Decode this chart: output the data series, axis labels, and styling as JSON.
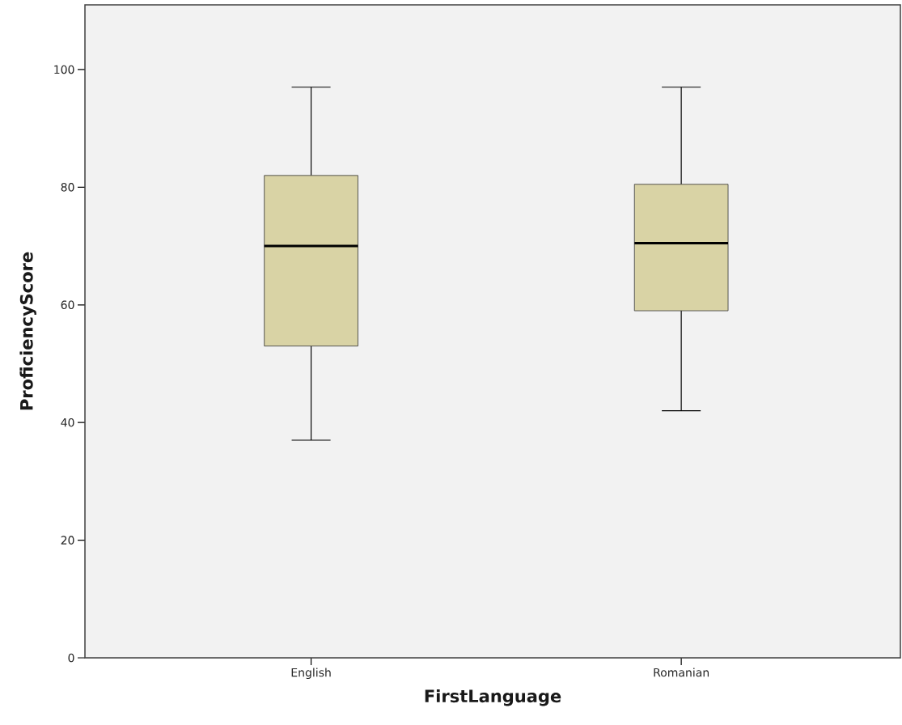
{
  "chart_data": {
    "type": "box",
    "xlabel": "FirstLanguage",
    "ylabel": "ProficiencyScore",
    "categories": [
      "English",
      "Romanian"
    ],
    "ylim": [
      0,
      111
    ],
    "yticks": [
      0,
      20,
      40,
      60,
      80,
      100
    ],
    "grid": false,
    "series": [
      {
        "color": "#d9d3a5",
        "boxes": [
          {
            "low": 37,
            "q1": 53,
            "median": 70,
            "q3": 82,
            "high": 97
          },
          {
            "low": 42,
            "q1": 59,
            "median": 70.5,
            "q3": 80.5,
            "high": 97
          }
        ]
      }
    ]
  }
}
